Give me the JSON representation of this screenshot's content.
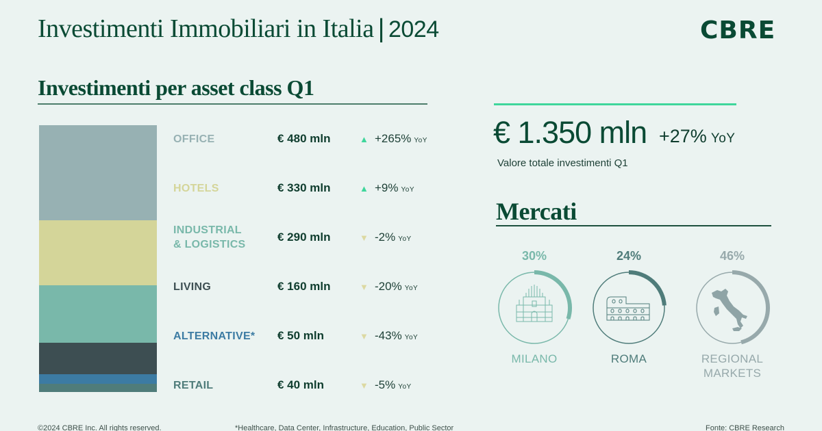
{
  "header": {
    "title": "Investimenti Immobiliari in Italia",
    "separator": "|",
    "year": "2024",
    "logo": "CBRE"
  },
  "section_asset": {
    "title": "Investimenti per asset class Q1",
    "rows": [
      {
        "label": "OFFICE",
        "label_color": "#97b1b3",
        "value": "€ 480 mln",
        "direction": "up",
        "arrow": "▲",
        "arrow_color": "#3fd69b",
        "change": "+265%",
        "yoy": "YoY"
      },
      {
        "label": "HOTELS",
        "label_color": "#d4d599",
        "value": "€ 330 mln",
        "direction": "up",
        "arrow": "▲",
        "arrow_color": "#3fd69b",
        "change": "+9%",
        "yoy": "YoY"
      },
      {
        "label": "INDUSTRIAL\n& LOGISTICS",
        "label_color": "#79b8aa",
        "value": "€ 290 mln",
        "direction": "down",
        "arrow": "▼",
        "arrow_color": "#dcd9a2",
        "change": "-2%",
        "yoy": "YoY"
      },
      {
        "label": "LIVING",
        "label_color": "#3d4e52",
        "value": "€ 160 mln",
        "direction": "down",
        "arrow": "▼",
        "arrow_color": "#dcd9a2",
        "change": "-20%",
        "yoy": "YoY"
      },
      {
        "label": "ALTERNATIVE*",
        "label_color": "#3c7ba3",
        "value": "€ 50 mln",
        "direction": "down",
        "arrow": "▼",
        "arrow_color": "#dcd9a2",
        "change": "-43%",
        "yoy": "YoY"
      },
      {
        "label": "RETAIL",
        "label_color": "#4f7c7a",
        "value": "€ 40 mln",
        "direction": "down",
        "arrow": "▼",
        "arrow_color": "#dcd9a2",
        "change": "-5%",
        "yoy": "YoY"
      }
    ]
  },
  "total": {
    "value": "€ 1.350 mln",
    "change": "+27%",
    "yoy": "YoY",
    "caption": "Valore totale investimenti Q1"
  },
  "markets": {
    "title": "Mercati",
    "items": [
      {
        "pct": "30%",
        "pct_value": 30,
        "name": "MILANO",
        "color": "#79b8aa",
        "icon": "duomo-icon"
      },
      {
        "pct": "24%",
        "pct_value": 24,
        "name": "ROMA",
        "color": "#4f7c7a",
        "icon": "colosseum-icon"
      },
      {
        "pct": "46%",
        "pct_value": 46,
        "name": "REGIONAL\nMARKETS",
        "color": "#97a9ab",
        "icon": "italy-map-icon"
      }
    ]
  },
  "footer": {
    "copyright": "©2024 CBRE Inc. All rights reserved.",
    "note": "*Healthcare, Data Center, Infrastructure, Education, Public Sector",
    "source": "Fonte: CBRE Research"
  },
  "colors": {
    "background": "#ebf3f1",
    "brand_green": "#0a4a34",
    "accent": "#3fd69b"
  },
  "chart_data": [
    {
      "type": "bar",
      "subtype": "stacked-100",
      "title": "Investimenti per asset class Q1",
      "categories": [
        "Office",
        "Hotels",
        "Industrial & Logistics",
        "Living",
        "Alternative*",
        "Retail"
      ],
      "values": [
        480,
        330,
        290,
        160,
        50,
        40
      ],
      "unit": "€ mln",
      "yoy_change_pct": [
        265,
        9,
        -2,
        -20,
        -43,
        -5
      ],
      "colors": [
        "#97b1b3",
        "#d4d599",
        "#79b8aa",
        "#3d4e52",
        "#3c7ba3",
        "#4f7c7a"
      ],
      "total": 1350,
      "total_yoy_pct": 27
    },
    {
      "type": "pie",
      "subtype": "radial-progress",
      "title": "Mercati",
      "categories": [
        "Milano",
        "Roma",
        "Regional Markets"
      ],
      "values": [
        30,
        24,
        46
      ],
      "unit": "%"
    }
  ]
}
